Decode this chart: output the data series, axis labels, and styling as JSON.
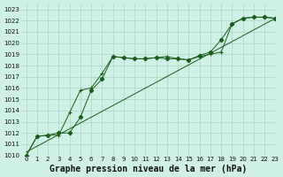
{
  "title": "Graphe pression niveau de la mer (hPa)",
  "background_color": "#cff0e4",
  "grid_color": "#aad4c4",
  "line_color": "#1a5c1a",
  "xlim": [
    -0.5,
    23
  ],
  "ylim": [
    1010.0,
    1023.5
  ],
  "xticks": [
    0,
    1,
    2,
    3,
    4,
    5,
    6,
    7,
    8,
    9,
    10,
    11,
    12,
    13,
    14,
    15,
    16,
    17,
    18,
    19,
    20,
    21,
    22,
    23
  ],
  "yticks": [
    1010,
    1011,
    1012,
    1013,
    1014,
    1015,
    1016,
    1017,
    1018,
    1019,
    1020,
    1021,
    1022,
    1023
  ],
  "series1_x": [
    0,
    1,
    2,
    3,
    4,
    5,
    6,
    7,
    8,
    9,
    10,
    11,
    12,
    13,
    14,
    15,
    16,
    17,
    18,
    19,
    20,
    21,
    22,
    23
  ],
  "series1_y": [
    1010.0,
    1011.7,
    1011.8,
    1011.8,
    1013.8,
    1015.8,
    1016.0,
    1017.3,
    1018.8,
    1018.7,
    1018.6,
    1018.6,
    1018.7,
    1018.8,
    1018.6,
    1018.5,
    1018.8,
    1019.0,
    1019.2,
    1021.7,
    1022.2,
    1022.3,
    1022.3,
    1022.2
  ],
  "series2_x": [
    0,
    1,
    2,
    3,
    4,
    5,
    6,
    7,
    8,
    9,
    10,
    11,
    12,
    13,
    14,
    15,
    16,
    17,
    18,
    19,
    20,
    21,
    22,
    23
  ],
  "series2_y": [
    1010.0,
    1011.7,
    1011.8,
    1012.0,
    1012.0,
    1013.4,
    1015.8,
    1016.8,
    1018.8,
    1018.7,
    1018.6,
    1018.6,
    1018.7,
    1018.6,
    1018.6,
    1018.5,
    1018.9,
    1019.2,
    1020.3,
    1021.7,
    1022.2,
    1022.3,
    1022.3,
    1022.2
  ],
  "series3_x": [
    0,
    23
  ],
  "series3_y": [
    1010.3,
    1022.2
  ],
  "title_fontsize": 7,
  "tick_fontsize": 5
}
